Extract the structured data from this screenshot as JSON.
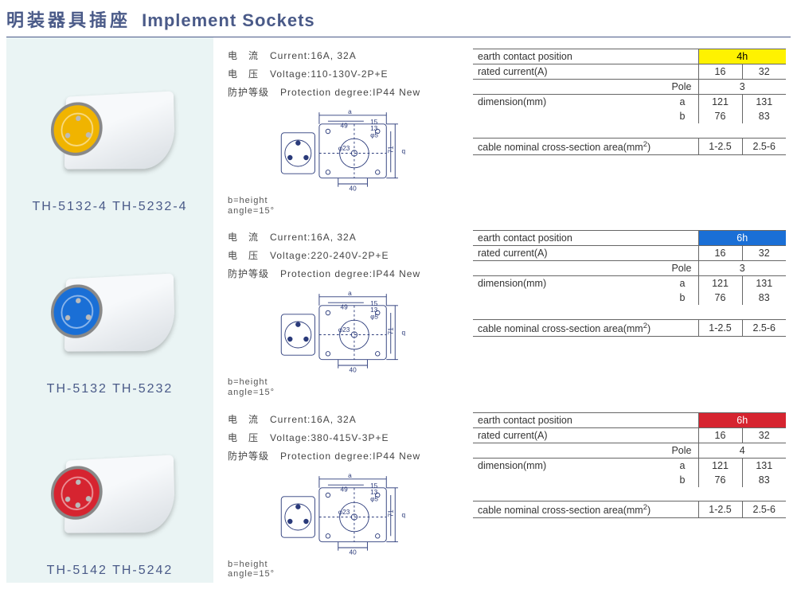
{
  "title_cn": "明装器具插座",
  "title_en": "Implement Sockets",
  "colors": {
    "title": "#4a5a88",
    "yellow": "#fff200",
    "blue": "#1a6fd6",
    "red": "#d62430",
    "img_bg": "#eaf4f4",
    "border": "#4a5a88"
  },
  "spec_labels": {
    "current_cn": "电　流",
    "current_en": "Current:",
    "voltage_cn": "电　压",
    "voltage_en": "Voltage:",
    "protection_cn": "防护等级",
    "protection_en": "Protection degree:",
    "bheight": "b=height",
    "angle": "angle=15°"
  },
  "table_labels": {
    "ecp": "earth contact position",
    "rated": "rated current(A)",
    "pole": "Pole",
    "dimension": "dimension(mm)",
    "a": "a",
    "b": "b",
    "cable": "cable nominal cross-section area(mm",
    "cable_sup": "2",
    "cable_close": ")"
  },
  "products": [
    {
      "id": "p1",
      "color_class": "yellow",
      "face_color": "#f0b400",
      "model": "TH-5132-4  TH-5232-4",
      "current": "16A, 32A",
      "voltage": "110-130V-2P+E",
      "protection": "IP44 New",
      "ecp_value": "4h",
      "ecp_bg": "#fff200",
      "ecp_text_color": "#000000",
      "rated": [
        "16",
        "32"
      ],
      "pole": "3",
      "dim_a": [
        "121",
        "131"
      ],
      "dim_b": [
        "76",
        "83"
      ],
      "cable": [
        "1-2.5",
        "2.5-6"
      ]
    },
    {
      "id": "p2",
      "color_class": "blue",
      "face_color": "#1a6fd6",
      "model": "TH-5132  TH-5232",
      "current": "16A, 32A",
      "voltage": "220-240V-2P+E",
      "protection": "IP44 New",
      "ecp_value": "6h",
      "ecp_bg": "#1a6fd6",
      "ecp_text_color": "#ffffff",
      "rated": [
        "16",
        "32"
      ],
      "pole": "3",
      "dim_a": [
        "121",
        "131"
      ],
      "dim_b": [
        "76",
        "83"
      ],
      "cable": [
        "1-2.5",
        "2.5-6"
      ]
    },
    {
      "id": "p3",
      "color_class": "red",
      "face_color": "#d62430",
      "model": "TH-5142  TH-5242",
      "current": "16A, 32A",
      "voltage": "380-415V-3P+E",
      "protection": "IP44 New",
      "ecp_value": "6h",
      "ecp_bg": "#d62430",
      "ecp_text_color": "#ffffff",
      "rated": [
        "16",
        "32"
      ],
      "pole": "4",
      "dim_a": [
        "121",
        "131"
      ],
      "dim_b": [
        "76",
        "83"
      ],
      "cable": [
        "1-2.5",
        "2.5-6"
      ]
    }
  ],
  "tech_drawing_labels": {
    "a": "a",
    "q": "q",
    "d49": "49",
    "d15": "15",
    "d13": "13",
    "d5": "φ5",
    "d23": "φ23",
    "d71": "71",
    "d40": "40"
  }
}
